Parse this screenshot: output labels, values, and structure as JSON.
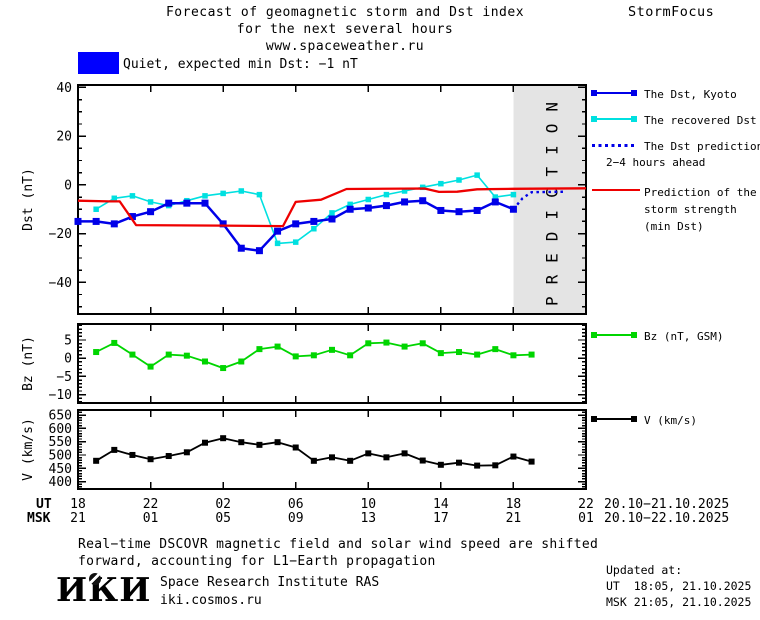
{
  "header": {
    "title_line1": "Forecast of geomagnetic storm and Dst index",
    "title_line2": "for the next several hours",
    "title_line3": "www.spaceweather.ru",
    "brand": "StormFocus"
  },
  "status_banner": {
    "label": "Quiet, expected min Dst: −1 nT",
    "swatch_color": "#0000ff"
  },
  "legend": {
    "dst_kyoto": "The Dst, Kyoto",
    "recovered": "The recovered Dst",
    "prediction_line1": "The Dst prediction",
    "prediction_line2": "2−4 hours ahead",
    "storm_line1": "Prediction of the",
    "storm_line2": "storm strength",
    "storm_line3": "(min Dst)",
    "bz": "Bz (nT, GSM)",
    "v": "V (km/s)"
  },
  "xaxis": {
    "xlim": [
      0,
      28
    ],
    "tick_offsets": [
      0,
      4,
      8,
      12,
      16,
      20,
      24,
      28
    ],
    "ut_prefix": "UT",
    "msk_prefix": "MSK",
    "ut_labels": [
      "18",
      "22",
      "02",
      "06",
      "10",
      "14",
      "18",
      "22"
    ],
    "msk_labels": [
      "21",
      "01",
      "05",
      "09",
      "13",
      "17",
      "21",
      "01"
    ],
    "ut_range": "20.10−21.10.2025",
    "msk_range": "20.10−22.10.2025"
  },
  "caption": {
    "line1": "Real−time DSCOVR magnetic field and solar wind speed are shifted",
    "line2": "forward, accounting for L1−Earth propagation"
  },
  "footer": {
    "logo": "ИКИ",
    "institute": "Space Research Institute RAS",
    "site": "iki.cosmos.ru",
    "updated_label": "Updated at:",
    "updated_ut": "UT  18:05, 21.10.2025",
    "updated_msk": "MSK 21:05, 21.10.2025"
  },
  "chart_data": [
    {
      "type": "line",
      "name": "dst",
      "ylabel": "Dst (nT)",
      "ylim": [
        -53,
        41
      ],
      "yticks": [
        40,
        20,
        0,
        -20,
        -40
      ],
      "yminor": 5,
      "band": {
        "from": 24,
        "to": 28,
        "label": "PREDICTION",
        "fill": "#e4e4e4",
        "text_color": "#c9c9c9"
      },
      "series": [
        {
          "name": "The recovered Dst",
          "color": "#00e0e0",
          "width": 1.6,
          "marker": 5.5,
          "points": [
            [
              1,
              -10
            ],
            [
              2,
              -5.5
            ],
            [
              3,
              -4.5
            ],
            [
              4,
              -7
            ],
            [
              5,
              -8.5
            ],
            [
              6,
              -6.5
            ],
            [
              7,
              -4.5
            ],
            [
              8,
              -3.5
            ],
            [
              9,
              -2.5
            ],
            [
              10,
              -4
            ],
            [
              11,
              -24
            ],
            [
              12,
              -23.5
            ],
            [
              13,
              -18
            ],
            [
              14,
              -11.5
            ],
            [
              15,
              -8
            ],
            [
              16,
              -6
            ],
            [
              17,
              -4
            ],
            [
              18,
              -2.5
            ],
            [
              19,
              -1
            ],
            [
              20,
              0.5
            ],
            [
              21,
              2
            ],
            [
              22,
              4
            ],
            [
              23,
              -5
            ],
            [
              24,
              -4
            ]
          ]
        },
        {
          "name": "The Dst, Kyoto",
          "color": "#0000e8",
          "width": 2.5,
          "marker": 7,
          "points": [
            [
              0,
              -15
            ],
            [
              1,
              -15
            ],
            [
              2,
              -16
            ],
            [
              3,
              -13
            ],
            [
              4,
              -11
            ],
            [
              5,
              -7.5
            ],
            [
              6,
              -7.5
            ],
            [
              7,
              -7.5
            ],
            [
              8,
              -16
            ],
            [
              9,
              -26
            ],
            [
              10,
              -27
            ],
            [
              11,
              -19
            ],
            [
              12,
              -16
            ],
            [
              13,
              -15
            ],
            [
              14,
              -14
            ],
            [
              15,
              -10
            ],
            [
              16,
              -9.5
            ],
            [
              17,
              -8.5
            ],
            [
              18,
              -7
            ],
            [
              19,
              -6.5
            ],
            [
              20,
              -10.5
            ],
            [
              21,
              -11
            ],
            [
              22,
              -10.5
            ],
            [
              23,
              -7
            ],
            [
              24,
              -10
            ]
          ]
        },
        {
          "name": "The Dst prediction 2−4 hours ahead",
          "color": "#0000e8",
          "width": 2.4,
          "dash": "2.5 3.5",
          "points": [
            [
              24,
              -10
            ],
            [
              24.5,
              -5.5
            ],
            [
              25,
              -3
            ],
            [
              26.9,
              -2.8
            ]
          ]
        },
        {
          "name": "Prediction of the storm strength (min Dst)",
          "color": "#ee0000",
          "width": 2.3,
          "points": [
            [
              0,
              -6.5
            ],
            [
              1.7,
              -6.8
            ],
            [
              2.3,
              -6.8
            ],
            [
              3.2,
              -16.5
            ],
            [
              8,
              -16.7
            ],
            [
              11.3,
              -16.9
            ],
            [
              12,
              -7
            ],
            [
              13.4,
              -6.1
            ],
            [
              14.8,
              -1.7
            ],
            [
              19.1,
              -1.5
            ],
            [
              19.9,
              -2.9
            ],
            [
              20.9,
              -2.8
            ],
            [
              22,
              -1.8
            ],
            [
              24,
              -1.6
            ],
            [
              28,
              -1.4
            ]
          ]
        }
      ]
    },
    {
      "type": "line",
      "name": "bz",
      "ylabel": "Bz (nT)",
      "ylim": [
        -12.3,
        9.4
      ],
      "yticks": [
        5,
        0,
        -5,
        -10
      ],
      "yminor": 1,
      "series": [
        {
          "name": "Bz (nT, GSM)",
          "color": "#00d500",
          "width": 1.8,
          "marker": 6,
          "points": [
            [
              1,
              1.7
            ],
            [
              2,
              4.2
            ],
            [
              3,
              1
            ],
            [
              4,
              -2.3
            ],
            [
              5,
              1
            ],
            [
              6,
              0.7
            ],
            [
              7,
              -0.9
            ],
            [
              8,
              -2.7
            ],
            [
              9,
              -0.9
            ],
            [
              10,
              2.5
            ],
            [
              11,
              3.2
            ],
            [
              12,
              0.5
            ],
            [
              13,
              0.8
            ],
            [
              14,
              2.3
            ],
            [
              15,
              0.8
            ],
            [
              16,
              4.1
            ],
            [
              17,
              4.3
            ],
            [
              18,
              3.2
            ],
            [
              19,
              4.1
            ],
            [
              20,
              1.4
            ],
            [
              21,
              1.7
            ],
            [
              22,
              1
            ],
            [
              23,
              2.5
            ],
            [
              24,
              0.8
            ],
            [
              25,
              1
            ]
          ]
        }
      ]
    },
    {
      "type": "line",
      "name": "v",
      "ylabel": "V (km/s)",
      "ylim": [
        372,
        669
      ],
      "yticks": [
        650,
        600,
        550,
        500,
        450,
        400
      ],
      "yminor": 10,
      "series": [
        {
          "name": "V (km/s)",
          "color": "#000000",
          "width": 1.8,
          "marker": 6,
          "points": [
            [
              1,
              478
            ],
            [
              2,
              519
            ],
            [
              3,
              500
            ],
            [
              4,
              484
            ],
            [
              5,
              496
            ],
            [
              6,
              510
            ],
            [
              7,
              546
            ],
            [
              8,
              563
            ],
            [
              9,
              548
            ],
            [
              10,
              538
            ],
            [
              11,
              548
            ],
            [
              12,
              528
            ],
            [
              13,
              478
            ],
            [
              14,
              491
            ],
            [
              15,
              478
            ],
            [
              16,
              506
            ],
            [
              17,
              491
            ],
            [
              18,
              506
            ],
            [
              19,
              479
            ],
            [
              20,
              463
            ],
            [
              21,
              471
            ],
            [
              22,
              460
            ],
            [
              23,
              461
            ],
            [
              24,
              494
            ],
            [
              25,
              475
            ]
          ]
        }
      ]
    }
  ]
}
